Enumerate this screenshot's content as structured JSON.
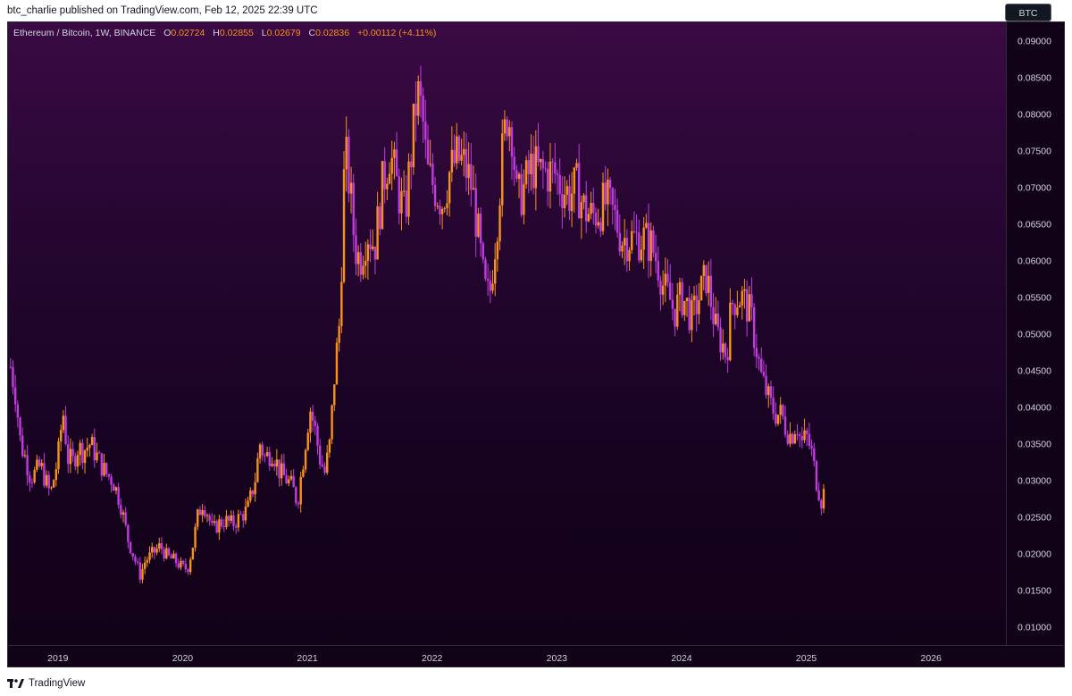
{
  "header": {
    "published": "btc_charlie published on TradingView.com, Feb 12, 2025 22:39 UTC"
  },
  "legend": {
    "symbol": "Ethereum / Bitcoin, 1W, BINANCE",
    "open_label": "O",
    "open": "0.02724",
    "high_label": "H",
    "high": "0.02855",
    "low_label": "L",
    "low": "0.02679",
    "close_label": "C",
    "close": "0.02836",
    "change": "+0.00112 (+4.11%)"
  },
  "currency_badge": "BTC",
  "footer": {
    "brand": "TradingView",
    "logo_icon": "tradingview-logo-icon"
  },
  "colors": {
    "up": "#f7931a",
    "down": "#c23be0",
    "background_top": "#3a0a44",
    "background_bottom": "#120218",
    "axis_text": "#d1d4dc"
  },
  "chart_data": {
    "type": "candlestick",
    "symbol": "Ethereum / Bitcoin",
    "interval": "1W",
    "exchange": "BINANCE",
    "x_range": [
      2018.6,
      2026.6
    ],
    "ylim": [
      0.0075,
      0.0925
    ],
    "y_ticks": [
      "0.01000",
      "0.01500",
      "0.02000",
      "0.02500",
      "0.03000",
      "0.03500",
      "0.04000",
      "0.04500",
      "0.05000",
      "0.05500",
      "0.06000",
      "0.06500",
      "0.07000",
      "0.07500",
      "0.08000",
      "0.08500",
      "0.09000"
    ],
    "x_ticks": [
      "2019",
      "2020",
      "2021",
      "2022",
      "2023",
      "2024",
      "2025",
      "2026"
    ],
    "close_series": [
      [
        2018.62,
        0.0455
      ],
      [
        2018.66,
        0.042
      ],
      [
        2018.7,
        0.035
      ],
      [
        2018.74,
        0.033
      ],
      [
        2018.78,
        0.0305
      ],
      [
        2018.82,
        0.031
      ],
      [
        2018.86,
        0.032
      ],
      [
        2018.9,
        0.03
      ],
      [
        2018.94,
        0.028
      ],
      [
        2019.0,
        0.033
      ],
      [
        2019.04,
        0.0395
      ],
      [
        2019.08,
        0.033
      ],
      [
        2019.12,
        0.0325
      ],
      [
        2019.16,
        0.0345
      ],
      [
        2019.2,
        0.034
      ],
      [
        2019.26,
        0.035
      ],
      [
        2019.32,
        0.033
      ],
      [
        2019.38,
        0.031
      ],
      [
        2019.44,
        0.03
      ],
      [
        2019.5,
        0.027
      ],
      [
        2019.56,
        0.022
      ],
      [
        2019.62,
        0.019
      ],
      [
        2019.66,
        0.017
      ],
      [
        2019.7,
        0.019
      ],
      [
        2019.76,
        0.02
      ],
      [
        2019.82,
        0.021
      ],
      [
        2019.88,
        0.0195
      ],
      [
        2019.94,
        0.019
      ],
      [
        2020.0,
        0.018
      ],
      [
        2020.04,
        0.018
      ],
      [
        2020.08,
        0.021
      ],
      [
        2020.12,
        0.025
      ],
      [
        2020.16,
        0.027
      ],
      [
        2020.2,
        0.0255
      ],
      [
        2020.24,
        0.023
      ],
      [
        2020.28,
        0.024
      ],
      [
        2020.34,
        0.0245
      ],
      [
        2020.4,
        0.024
      ],
      [
        2020.46,
        0.025
      ],
      [
        2020.52,
        0.026
      ],
      [
        2020.58,
        0.03
      ],
      [
        2020.62,
        0.035
      ],
      [
        2020.66,
        0.033
      ],
      [
        2020.72,
        0.034
      ],
      [
        2020.78,
        0.031
      ],
      [
        2020.84,
        0.03
      ],
      [
        2020.88,
        0.029
      ],
      [
        2020.92,
        0.027
      ],
      [
        2020.96,
        0.032
      ],
      [
        2021.02,
        0.04
      ],
      [
        2021.06,
        0.037
      ],
      [
        2021.1,
        0.033
      ],
      [
        2021.14,
        0.031
      ],
      [
        2021.18,
        0.035
      ],
      [
        2021.22,
        0.045
      ],
      [
        2021.26,
        0.052
      ],
      [
        2021.3,
        0.075
      ],
      [
        2021.34,
        0.07
      ],
      [
        2021.38,
        0.062
      ],
      [
        2021.42,
        0.06
      ],
      [
        2021.48,
        0.064
      ],
      [
        2021.54,
        0.062
      ],
      [
        2021.6,
        0.07
      ],
      [
        2021.66,
        0.075
      ],
      [
        2021.72,
        0.07
      ],
      [
        2021.78,
        0.066
      ],
      [
        2021.84,
        0.076
      ],
      [
        2021.88,
        0.083
      ],
      [
        2021.92,
        0.08
      ],
      [
        2021.96,
        0.072
      ],
      [
        2022.02,
        0.07
      ],
      [
        2022.08,
        0.068
      ],
      [
        2022.14,
        0.072
      ],
      [
        2022.2,
        0.074
      ],
      [
        2022.26,
        0.073
      ],
      [
        2022.32,
        0.07
      ],
      [
        2022.38,
        0.062
      ],
      [
        2022.42,
        0.056
      ],
      [
        2022.46,
        0.055
      ],
      [
        2022.52,
        0.065
      ],
      [
        2022.56,
        0.074
      ],
      [
        2022.6,
        0.08
      ],
      [
        2022.64,
        0.078
      ],
      [
        2022.68,
        0.068
      ],
      [
        2022.74,
        0.07
      ],
      [
        2022.8,
        0.073
      ],
      [
        2022.86,
        0.072
      ],
      [
        2022.92,
        0.072
      ],
      [
        2022.98,
        0.072
      ],
      [
        2023.04,
        0.07
      ],
      [
        2023.1,
        0.069
      ],
      [
        2023.16,
        0.07
      ],
      [
        2023.22,
        0.067
      ],
      [
        2023.28,
        0.066
      ],
      [
        2023.34,
        0.067
      ],
      [
        2023.4,
        0.068
      ],
      [
        2023.46,
        0.066
      ],
      [
        2023.52,
        0.063
      ],
      [
        2023.58,
        0.063
      ],
      [
        2023.64,
        0.063
      ],
      [
        2023.7,
        0.063
      ],
      [
        2023.76,
        0.062
      ],
      [
        2023.82,
        0.059
      ],
      [
        2023.86,
        0.056
      ],
      [
        2023.9,
        0.055
      ],
      [
        2023.94,
        0.053
      ],
      [
        2024.0,
        0.055
      ],
      [
        2024.04,
        0.054
      ],
      [
        2024.08,
        0.052
      ],
      [
        2024.12,
        0.054
      ],
      [
        2024.16,
        0.056
      ],
      [
        2024.2,
        0.058
      ],
      [
        2024.24,
        0.054
      ],
      [
        2024.28,
        0.05
      ],
      [
        2024.32,
        0.049
      ],
      [
        2024.36,
        0.047
      ],
      [
        2024.4,
        0.054
      ],
      [
        2024.44,
        0.055
      ],
      [
        2024.48,
        0.055
      ],
      [
        2024.52,
        0.054
      ],
      [
        2024.56,
        0.052
      ],
      [
        2024.6,
        0.048
      ],
      [
        2024.64,
        0.044
      ],
      [
        2024.68,
        0.042
      ],
      [
        2024.72,
        0.04
      ],
      [
        2024.76,
        0.039
      ],
      [
        2024.8,
        0.039
      ],
      [
        2024.84,
        0.037
      ],
      [
        2024.88,
        0.036
      ],
      [
        2024.92,
        0.038
      ],
      [
        2024.96,
        0.035
      ],
      [
        2025.0,
        0.036
      ],
      [
        2025.04,
        0.034
      ],
      [
        2025.08,
        0.03
      ],
      [
        2025.12,
        0.0272
      ],
      [
        2025.14,
        0.0284
      ]
    ]
  }
}
